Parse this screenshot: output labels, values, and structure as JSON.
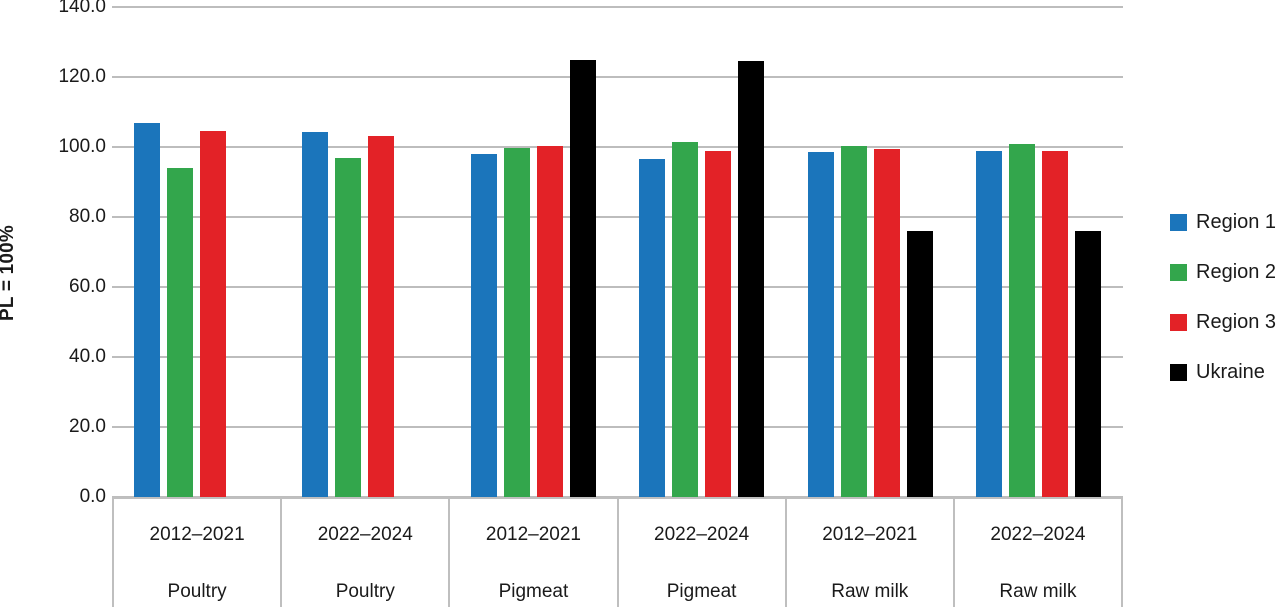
{
  "chart_data": {
    "type": "bar",
    "title": "",
    "xlabel": "",
    "ylabel": "PL = 100%",
    "ylim": [
      0,
      140
    ],
    "ytick_step": 20,
    "ytick_labels": [
      "0.0",
      "20.0",
      "40.0",
      "60.0",
      "80.0",
      "100.0",
      "120.0",
      "140.0"
    ],
    "grid": true,
    "legend_position": "right",
    "categories": [
      {
        "period": "2012–2021",
        "product": "Poultry"
      },
      {
        "period": "2022–2024",
        "product": "Poultry"
      },
      {
        "period": "2012–2021",
        "product": "Pigmeat"
      },
      {
        "period": "2022–2024",
        "product": "Pigmeat"
      },
      {
        "period": "2012–2021",
        "product": "Raw milk"
      },
      {
        "period": "2022–2024",
        "product": "Raw milk"
      }
    ],
    "series": [
      {
        "name": "Region 1",
        "color": "#1b75bb",
        "values": [
          107.0,
          104.3,
          98.0,
          96.6,
          98.6,
          99.0
        ]
      },
      {
        "name": "Region 2",
        "color": "#33a64c",
        "values": [
          94.0,
          96.8,
          99.8,
          101.5,
          100.4,
          101.0
        ]
      },
      {
        "name": "Region 3",
        "color": "#e32227",
        "values": [
          104.5,
          103.2,
          100.3,
          99.0,
          99.5,
          99.0
        ]
      },
      {
        "name": "Ukraine",
        "color": "#000000",
        "values": [
          null,
          null,
          125.0,
          124.5,
          76.0,
          76.0
        ]
      }
    ],
    "colors": {
      "gridline": "#bdbdbd",
      "table_border": "#bfbfbf",
      "text": "#1a1a1a"
    }
  }
}
